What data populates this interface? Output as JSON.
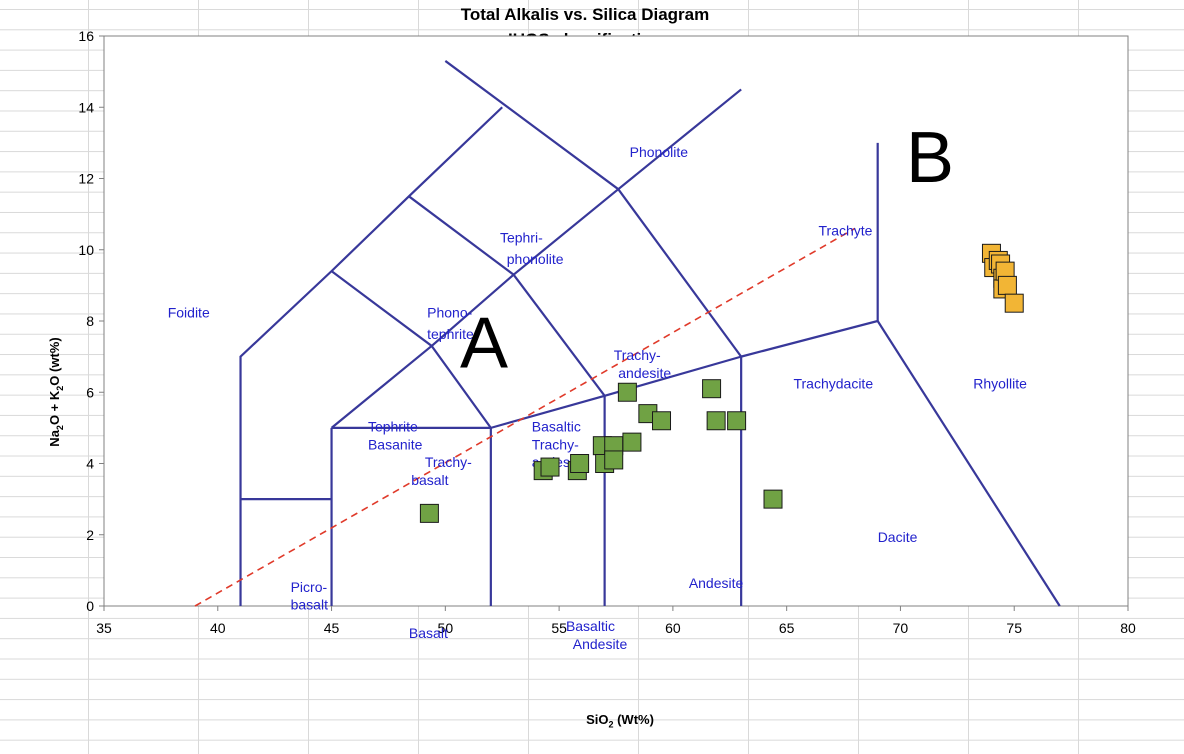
{
  "chart_data": {
    "type": "scatter",
    "title": "Total Alkalis vs. Silica Diagram",
    "subtitle": "IUGS classification",
    "xlabel": {
      "prefix": "SiO",
      "sub": "2",
      "suffix": " (Wt%)"
    },
    "ylabel": {
      "p1": "Na",
      "s1": "2",
      "p2": "O + K",
      "s2": "2",
      "p3": "O (wt%)"
    },
    "xlim": [
      35,
      80
    ],
    "ylim": [
      0,
      16
    ],
    "xticks": [
      35,
      40,
      45,
      50,
      55,
      60,
      65,
      70,
      75,
      80
    ],
    "yticks": [
      0,
      2,
      4,
      6,
      8,
      10,
      12,
      14,
      16
    ],
    "grid": false,
    "boundaries": [
      [
        [
          41,
          0
        ],
        [
          41,
          7
        ],
        [
          45,
          9.4
        ],
        [
          48.4,
          11.5
        ],
        [
          52.5,
          14
        ]
      ],
      [
        [
          45,
          9.4
        ],
        [
          49.4,
          7.3
        ],
        [
          53,
          9.3
        ],
        [
          57.6,
          11.7
        ],
        [
          63,
          14.5
        ]
      ],
      [
        [
          48.4,
          11.5
        ],
        [
          53,
          9.3
        ]
      ],
      [
        [
          57.6,
          11.7
        ],
        [
          50,
          15.3
        ]
      ],
      [
        [
          57.6,
          11.7
        ],
        [
          63,
          7
        ]
      ],
      [
        [
          63,
          7
        ],
        [
          69,
          8
        ],
        [
          69,
          13
        ]
      ],
      [
        [
          69,
          8
        ],
        [
          77,
          0
        ]
      ],
      [
        [
          63,
          0
        ],
        [
          63,
          7
        ]
      ],
      [
        [
          57,
          0
        ],
        [
          57,
          5.9
        ]
      ],
      [
        [
          52,
          0
        ],
        [
          52,
          5
        ]
      ],
      [
        [
          45,
          0
        ],
        [
          45,
          5
        ]
      ],
      [
        [
          41,
          3
        ],
        [
          45,
          3
        ]
      ],
      [
        [
          45,
          5
        ],
        [
          52,
          5
        ]
      ],
      [
        [
          45,
          5
        ],
        [
          49.4,
          7.3
        ],
        [
          52,
          5
        ]
      ],
      [
        [
          52,
          5
        ],
        [
          57,
          5.9
        ],
        [
          63,
          7
        ]
      ],
      [
        [
          53,
          9.3
        ],
        [
          57,
          5.9
        ]
      ]
    ],
    "divider": [
      [
        39,
        0
      ],
      [
        68,
        10.6
      ]
    ],
    "field_labels": [
      {
        "text": "Foidite",
        "x": 37.8,
        "y": 8.1
      },
      {
        "text": "Phonolite",
        "x": 58.1,
        "y": 12.6
      },
      {
        "text": "Tephri-",
        "x": 52.4,
        "y": 10.2
      },
      {
        "text": "phonolite",
        "x": 52.7,
        "y": 9.6
      },
      {
        "text": "Phono-",
        "x": 49.2,
        "y": 8.1
      },
      {
        "text": "tephrite",
        "x": 49.2,
        "y": 7.5
      },
      {
        "text": "Trachyte",
        "x": 66.4,
        "y": 10.4
      },
      {
        "text": "Trachy-",
        "x": 57.4,
        "y": 6.9
      },
      {
        "text": "andesite",
        "x": 57.6,
        "y": 6.4
      },
      {
        "text": "Trachydacite",
        "x": 65.3,
        "y": 6.1
      },
      {
        "text": "Rhyollite",
        "x": 73.2,
        "y": 6.1
      },
      {
        "text": "Tephrite",
        "x": 46.6,
        "y": 4.9
      },
      {
        "text": "Basanite",
        "x": 46.6,
        "y": 4.4
      },
      {
        "text": "Basaltic",
        "x": 53.8,
        "y": 4.9
      },
      {
        "text": "Trachy-",
        "x": 53.8,
        "y": 4.4
      },
      {
        "text": "andesite",
        "x": 53.8,
        "y": 3.9
      },
      {
        "text": "Trachy-",
        "x": 49.1,
        "y": 3.9
      },
      {
        "text": "basalt",
        "x": 48.5,
        "y": 3.4
      },
      {
        "text": "Dacite",
        "x": 69,
        "y": 1.8
      },
      {
        "text": "Andesite",
        "x": 60.7,
        "y": 0.5
      },
      {
        "text": "Picro-",
        "x": 43.2,
        "y": 0.4
      },
      {
        "text": "basalt",
        "x": 43.2,
        "y": -0.1
      },
      {
        "text": "Basalt",
        "x": 48.4,
        "y": -0.9
      },
      {
        "text": "Basaltic",
        "x": 55.3,
        "y": -0.7
      },
      {
        "text": "Andesite",
        "x": 55.6,
        "y": -1.2
      }
    ],
    "region_labels": [
      {
        "text": "A",
        "x": 51.7,
        "y": 6.7
      },
      {
        "text": "B",
        "x": 71.3,
        "y": 11.9
      }
    ],
    "series": [
      {
        "color": "#70a244",
        "points": [
          [
            49.3,
            2.6
          ],
          [
            54.3,
            3.8
          ],
          [
            54.6,
            3.9
          ],
          [
            55.8,
            3.8
          ],
          [
            55.9,
            4.0
          ],
          [
            56.9,
            4.5
          ],
          [
            57.4,
            4.5
          ],
          [
            57.0,
            4.0
          ],
          [
            57.4,
            4.1
          ],
          [
            58.2,
            4.6
          ],
          [
            58.0,
            6.0
          ],
          [
            58.9,
            5.4
          ],
          [
            59.5,
            5.2
          ],
          [
            61.7,
            6.1
          ],
          [
            61.9,
            5.2
          ],
          [
            62.8,
            5.2
          ],
          [
            64.4,
            3.0
          ]
        ]
      },
      {
        "color": "#f2b535",
        "points": [
          [
            74.0,
            9.9
          ],
          [
            74.1,
            9.5
          ],
          [
            74.3,
            9.7
          ],
          [
            74.4,
            9.6
          ],
          [
            74.5,
            9.2
          ],
          [
            74.5,
            8.9
          ],
          [
            74.6,
            9.4
          ],
          [
            74.7,
            9.0
          ],
          [
            75.0,
            8.5
          ]
        ]
      }
    ],
    "colors": {
      "boundary": "#38389a",
      "divider": "#e03a2a",
      "label": "#2222cc"
    }
  }
}
